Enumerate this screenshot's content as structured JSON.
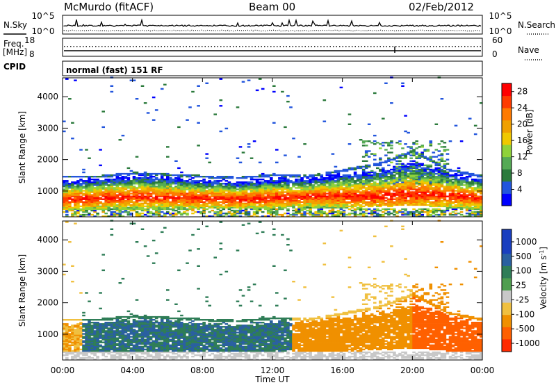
{
  "header": {
    "station": "McMurdo (fitACF)",
    "beam": "Beam 00",
    "date": "02/Feb/2012"
  },
  "summary": {
    "nsky_label": "N.Sky",
    "nsearch_label": "N.Search",
    "freq_label_1": "Freq.",
    "freq_label_2": "[MHz]",
    "nave_label": "Nave",
    "cpid_label": "CPID",
    "cpid_text": "normal (fast) 151 RF",
    "noise_ticks": [
      "10^5",
      "10^0"
    ],
    "freq_ticks": [
      "18",
      "8"
    ],
    "nave_ticks": [
      "60",
      "0"
    ]
  },
  "colors": {
    "power_scale": [
      "#0000ff",
      "#2255dd",
      "#2b7a3c",
      "#55aa55",
      "#8fd23a",
      "#f0c800",
      "#f0a000",
      "#ff7a00",
      "#ff3b00",
      "#ff0000"
    ],
    "velocity_scale": [
      "#1a3fbf",
      "#2a60a0",
      "#2f7d57",
      "#4f9e4f",
      "#80c060",
      "#c8c8c8",
      "#f0c040",
      "#f09000",
      "#ff6000",
      "#ff2a00",
      "#ff0000"
    ]
  },
  "chart_data": [
    {
      "type": "heatmap",
      "name": "power",
      "xlabel": "Time UT",
      "ylabel": "Slant Range [km]",
      "colorbar_label": "Power [dB]",
      "x_ticks": [
        "00:00",
        "04:00",
        "08:00",
        "12:00",
        "16:00",
        "20:00",
        "00:00"
      ],
      "y_ticks": [
        1000,
        2000,
        3000,
        4000
      ],
      "ylim": [
        180,
        4600
      ],
      "xlim_hours": [
        0,
        24
      ],
      "colorbar_ticks": [
        4,
        8,
        12,
        16,
        20,
        24,
        28
      ],
      "colorbar_range": [
        0,
        30
      ],
      "band_profile": [
        {
          "hour": 0,
          "low": 450,
          "high": 1400,
          "core": 700
        },
        {
          "hour": 2,
          "low": 450,
          "high": 1400,
          "core": 750
        },
        {
          "hour": 4,
          "low": 450,
          "high": 1500,
          "core": 800
        },
        {
          "hour": 6,
          "low": 460,
          "high": 1450,
          "core": 780
        },
        {
          "hour": 8,
          "low": 470,
          "high": 1400,
          "core": 750
        },
        {
          "hour": 10,
          "low": 480,
          "high": 1350,
          "core": 720
        },
        {
          "hour": 12,
          "low": 480,
          "high": 1450,
          "core": 760
        },
        {
          "hour": 14,
          "low": 500,
          "high": 1400,
          "core": 800
        },
        {
          "hour": 16,
          "low": 500,
          "high": 1600,
          "core": 820
        },
        {
          "hour": 18,
          "low": 520,
          "high": 1800,
          "core": 800
        },
        {
          "hour": 20,
          "low": 600,
          "high": 2200,
          "core": 900
        },
        {
          "hour": 22,
          "low": 500,
          "high": 1600,
          "core": 850
        },
        {
          "hour": 24,
          "low": 450,
          "high": 1400,
          "core": 750
        }
      ]
    },
    {
      "type": "heatmap",
      "name": "velocity",
      "xlabel": "Time UT",
      "ylabel": "Slant Range [km]",
      "colorbar_label": "Velocity [m s^-1]",
      "x_ticks": [
        "00:00",
        "04:00",
        "08:00",
        "12:00",
        "16:00",
        "20:00",
        "00:00"
      ],
      "y_ticks": [
        1000,
        2000,
        3000,
        4000
      ],
      "ylim": [
        180,
        4600
      ],
      "xlim_hours": [
        0,
        24
      ],
      "colorbar_ticks": [
        1000,
        500,
        100,
        25,
        -25,
        -100,
        -500,
        -1000
      ],
      "velocity_by_period": [
        {
          "from_hour": 0,
          "to_hour": 1,
          "velocity": -100
        },
        {
          "from_hour": 1,
          "to_hour": 13,
          "velocity": 300
        },
        {
          "from_hour": 13,
          "to_hour": 20,
          "velocity": -200
        },
        {
          "from_hour": 20,
          "to_hour": 24,
          "velocity": -400
        }
      ]
    }
  ]
}
